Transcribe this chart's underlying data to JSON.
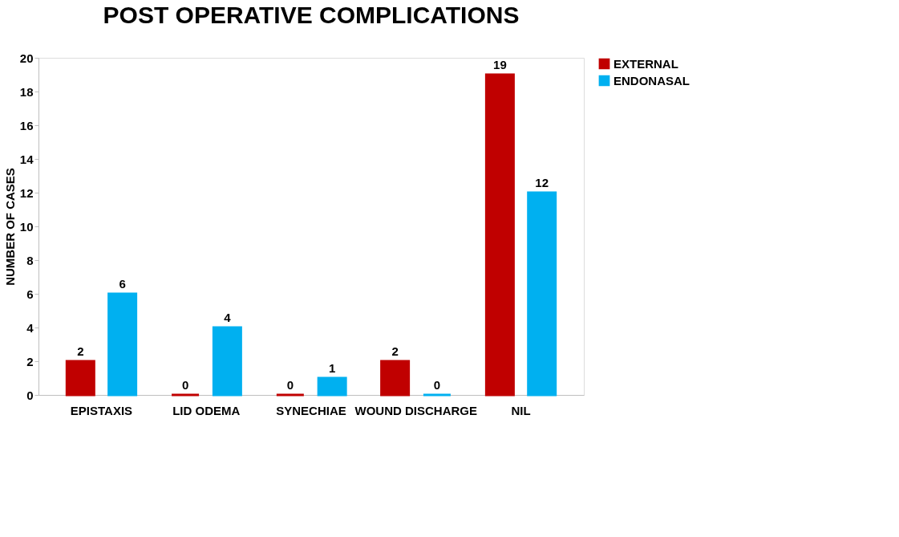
{
  "chart_data": {
    "type": "bar",
    "title": "POST OPERATIVE COMPLICATIONS",
    "ylabel": "NUMBER OF CASES",
    "categories": [
      "EPISTAXIS",
      "LID ODEMA",
      "SYNECHIAE",
      "WOUND DISCHARGE",
      "NIL"
    ],
    "series": [
      {
        "name": "EXTERNAL",
        "color": "#c00000",
        "values": [
          2,
          0,
          0,
          2,
          19
        ]
      },
      {
        "name": "ENDONASAL",
        "color": "#00b0f0",
        "values": [
          6,
          4,
          1,
          0,
          12
        ]
      }
    ],
    "ylim": [
      0,
      20
    ],
    "yticks": [
      0,
      2,
      4,
      6,
      8,
      10,
      12,
      14,
      16,
      18,
      20
    ],
    "grid": false,
    "legend": "right",
    "data_labels": true
  }
}
